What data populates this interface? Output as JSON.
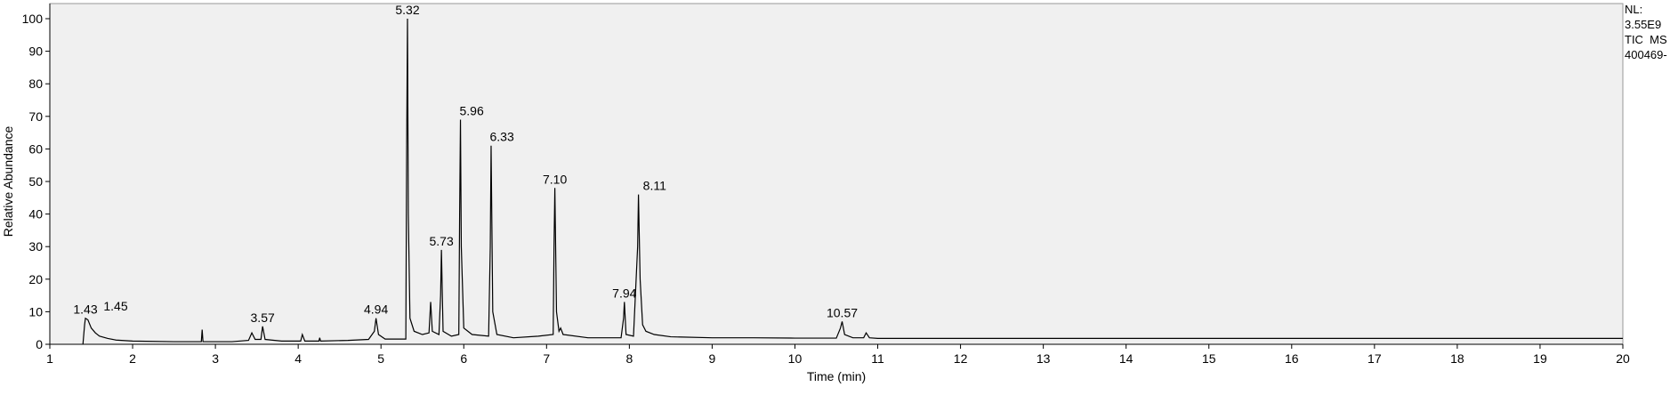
{
  "chart_data": {
    "type": "line",
    "x_label": "Time (min)",
    "y_label": "Relative Abundance",
    "info": [
      "NL:",
      "3.55E9",
      "TIC  MS",
      "400469-"
    ],
    "xlim": [
      1,
      20
    ],
    "ylim": [
      0,
      100
    ],
    "xticks": [
      1,
      2,
      3,
      4,
      5,
      6,
      7,
      8,
      9,
      10,
      11,
      12,
      13,
      14,
      15,
      16,
      17,
      18,
      19,
      20
    ],
    "yticks": [
      0,
      10,
      20,
      30,
      40,
      50,
      60,
      70,
      80,
      90,
      100
    ],
    "grid": false,
    "series": [
      {
        "name": "TIC",
        "color": "#000000",
        "x": [
          1.4,
          1.42,
          1.43,
          1.46,
          1.5,
          1.55,
          1.6,
          1.7,
          1.8,
          2.0,
          2.5,
          2.83,
          2.84,
          2.85,
          3.2,
          3.4,
          3.44,
          3.48,
          3.55,
          3.57,
          3.6,
          3.8,
          4.03,
          4.05,
          4.08,
          4.25,
          4.26,
          4.27,
          4.6,
          4.85,
          4.92,
          4.94,
          4.97,
          5.05,
          5.3,
          5.31,
          5.32,
          5.33,
          5.35,
          5.4,
          5.5,
          5.58,
          5.6,
          5.62,
          5.7,
          5.72,
          5.73,
          5.75,
          5.85,
          5.94,
          5.95,
          5.96,
          5.97,
          6.0,
          6.1,
          6.3,
          6.32,
          6.33,
          6.35,
          6.4,
          6.6,
          6.9,
          7.08,
          7.09,
          7.1,
          7.12,
          7.15,
          7.17,
          7.2,
          7.5,
          7.9,
          7.93,
          7.94,
          7.96,
          8.05,
          8.1,
          8.11,
          8.13,
          8.16,
          8.2,
          8.3,
          8.5,
          9,
          9.5,
          10,
          10.5,
          10.55,
          10.57,
          10.6,
          10.7,
          10.83,
          10.86,
          10.9,
          11,
          20
        ],
        "values": [
          0,
          6,
          8,
          7.5,
          5,
          3.5,
          2.5,
          1.8,
          1.3,
          1,
          0.8,
          0.8,
          4.5,
          0.8,
          0.8,
          1.2,
          3.5,
          1.5,
          1.5,
          5.5,
          1.5,
          1,
          1,
          3,
          1,
          1,
          2,
          1,
          1.2,
          1.5,
          4,
          8,
          3,
          1.6,
          1.6,
          60,
          100,
          40,
          8,
          4,
          3,
          3.5,
          13,
          4,
          3,
          15,
          29,
          4,
          2.5,
          3,
          40,
          69,
          30,
          5,
          3,
          2.5,
          30,
          61,
          10,
          3,
          2,
          2.5,
          3,
          30,
          48,
          10,
          4,
          5,
          3,
          2,
          2,
          8,
          13,
          3,
          2.5,
          30,
          46,
          20,
          6,
          4,
          3,
          2.3,
          2,
          2,
          1.9,
          1.9,
          5,
          7,
          3,
          2,
          2,
          3.5,
          2,
          1.8,
          1.8
        ]
      }
    ],
    "annotations": [
      {
        "x": 1.43,
        "y": 8
      },
      {
        "x": 1.45,
        "y": 9
      },
      {
        "x": 3.57,
        "y": 5.5
      },
      {
        "x": 4.94,
        "y": 8
      },
      {
        "x": 5.32,
        "y": 100
      },
      {
        "x": 5.73,
        "y": 29
      },
      {
        "x": 5.96,
        "y": 69
      },
      {
        "x": 6.33,
        "y": 61
      },
      {
        "x": {
          "value": 7.1,
          "label": "7.10"
        },
        "y": 48
      },
      {
        "x": 7.94,
        "y": 13
      },
      {
        "x": 8.11,
        "y": 46
      },
      {
        "x": 10.57,
        "y": 7
      }
    ]
  }
}
